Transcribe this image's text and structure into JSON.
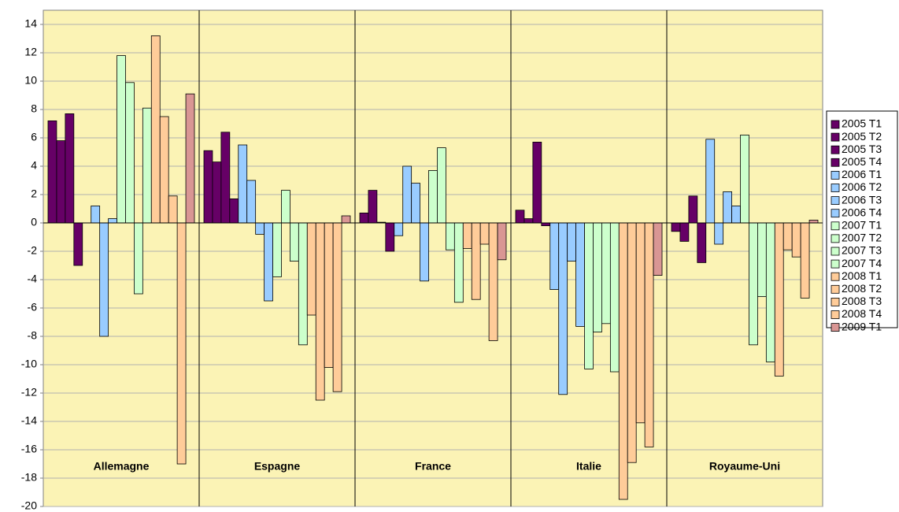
{
  "chart_data": {
    "type": "bar",
    "categories": [
      "Allemagne",
      "Espagne",
      "France",
      "Italie",
      "Royaume-Uni"
    ],
    "ylim": [
      -20,
      15
    ],
    "yticks": [
      -20,
      -18,
      -16,
      -14,
      -12,
      -10,
      -8,
      -6,
      -4,
      -2,
      0,
      2,
      4,
      6,
      8,
      10,
      12,
      14
    ],
    "grid": true,
    "legend": "right",
    "series": [
      {
        "name": "2005 T1",
        "color": "#660066",
        "values": [
          7.2,
          5.1,
          0.7,
          0.9,
          -0.6
        ]
      },
      {
        "name": "2005 T2",
        "color": "#660066",
        "values": [
          5.8,
          4.3,
          2.3,
          0.3,
          -1.3
        ]
      },
      {
        "name": "2005 T3",
        "color": "#660066",
        "values": [
          7.7,
          6.4,
          0.05,
          5.7,
          1.9
        ]
      },
      {
        "name": "2005 T4",
        "color": "#660066",
        "values": [
          -3.0,
          1.7,
          -2.0,
          -0.2,
          -2.8
        ]
      },
      {
        "name": "2006 T1",
        "color": "#99ccff",
        "values": [
          0.0,
          5.5,
          -0.9,
          -4.7,
          5.9
        ]
      },
      {
        "name": "2006 T2",
        "color": "#99ccff",
        "values": [
          1.2,
          3.0,
          4.0,
          -12.1,
          -1.5
        ]
      },
      {
        "name": "2006 T3",
        "color": "#99ccff",
        "values": [
          -8.0,
          -0.8,
          2.8,
          -2.7,
          2.2
        ]
      },
      {
        "name": "2006 T4",
        "color": "#99ccff",
        "values": [
          0.3,
          -5.5,
          -4.1,
          -7.3,
          1.2
        ]
      },
      {
        "name": "2007 T1",
        "color": "#ccffcc",
        "values": [
          11.8,
          -3.8,
          3.7,
          -10.3,
          6.2
        ]
      },
      {
        "name": "2007 T2",
        "color": "#ccffcc",
        "values": [
          9.9,
          2.3,
          5.3,
          -7.7,
          -8.6
        ]
      },
      {
        "name": "2007 T3",
        "color": "#ccffcc",
        "values": [
          -5.0,
          -2.7,
          -1.9,
          -7.1,
          -5.2
        ]
      },
      {
        "name": "2007 T4",
        "color": "#ccffcc",
        "values": [
          8.1,
          -8.6,
          -5.6,
          -10.5,
          -9.8
        ]
      },
      {
        "name": "2008 T1",
        "color": "#ffcc99",
        "values": [
          13.2,
          -6.5,
          -1.8,
          -19.5,
          -10.8
        ]
      },
      {
        "name": "2008 T2",
        "color": "#ffcc99",
        "values": [
          7.5,
          -12.5,
          -5.4,
          -16.9,
          -1.9
        ]
      },
      {
        "name": "2008 T3",
        "color": "#ffcc99",
        "values": [
          1.9,
          -10.2,
          -1.5,
          -14.1,
          -2.4
        ]
      },
      {
        "name": "2008 T4",
        "color": "#ffcc99",
        "values": [
          -17.0,
          -11.9,
          -8.3,
          -15.8,
          -5.3
        ]
      },
      {
        "name": "2009 T1",
        "color": "#d99694",
        "values": [
          9.1,
          0.5,
          -2.6,
          -3.7,
          0.2
        ]
      }
    ]
  }
}
